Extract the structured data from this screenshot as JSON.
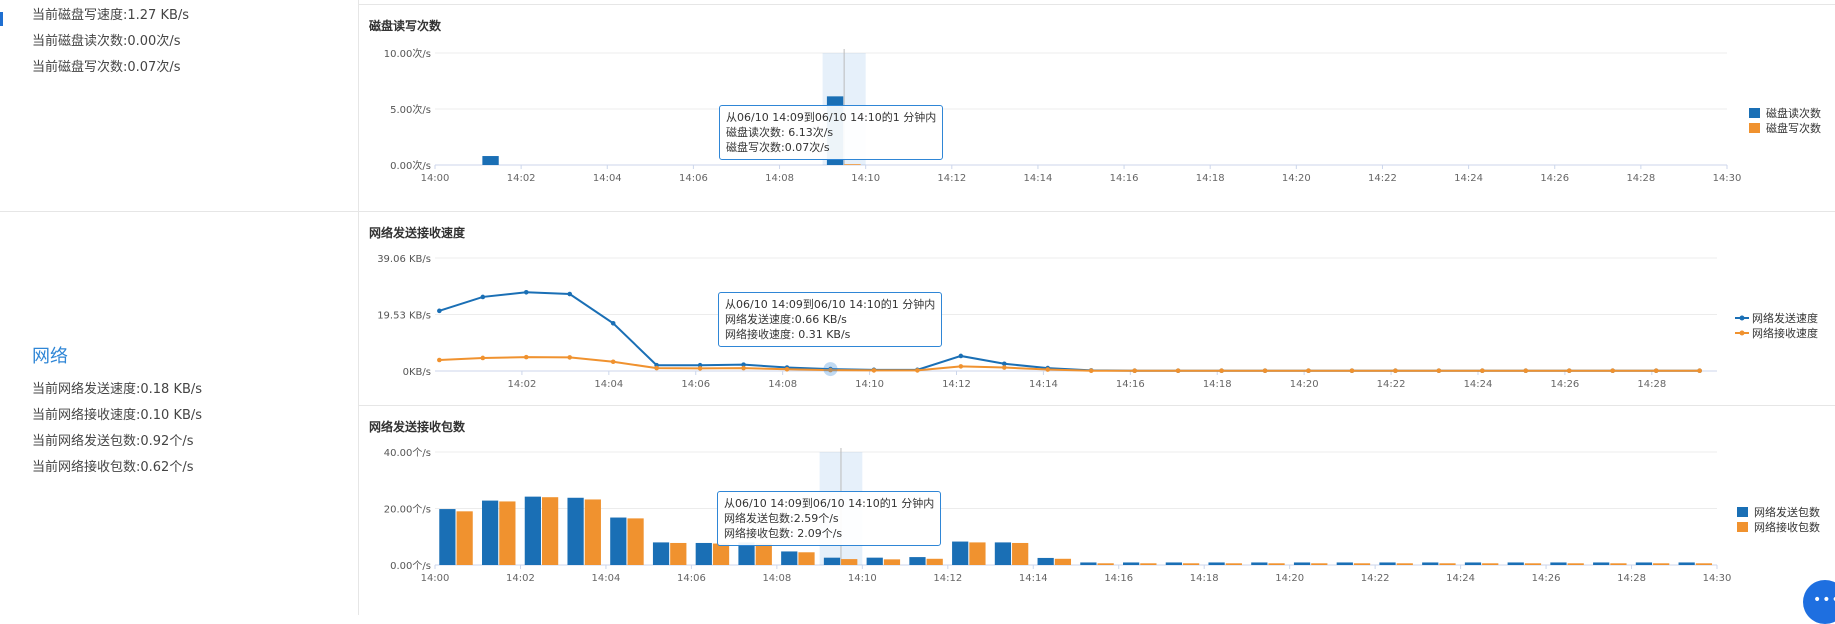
{
  "left": {
    "disk_stats": [
      "当前磁盘写速度:1.27 KB/s",
      "当前磁盘读次数:0.00次/s",
      "当前磁盘写次数:0.07次/s"
    ],
    "network_title": "网络",
    "network_stats": [
      "当前网络发送速度:0.18 KB/s",
      "当前网络接收速度:0.10 KB/s",
      "当前网络发送包数:0.92个/s",
      "当前网络接收包数:0.62个/s"
    ]
  },
  "chat_icon": "chat-bubble-icon",
  "chart_data": [
    {
      "type": "bar",
      "title": "磁盘读写次数",
      "y_ticks": [
        "10.00次/s",
        "5.00次/s",
        "0.00次/s"
      ],
      "ylim": [
        0,
        10
      ],
      "x_ticks": [
        "14:00",
        "14:02",
        "14:04",
        "14:06",
        "14:08",
        "14:10",
        "14:12",
        "14:14",
        "14:16",
        "14:18",
        "14:20",
        "14:22",
        "14:24",
        "14:26",
        "14:28",
        "14:30"
      ],
      "x_range": [
        0,
        30
      ],
      "legend_position": "right",
      "series": [
        {
          "name": "磁盘读次数",
          "color": "#1a6fb5",
          "points": [
            [
              1,
              0.8
            ],
            [
              9,
              6.13
            ]
          ]
        },
        {
          "name": "磁盘写次数",
          "color": "#f0922f",
          "points": [
            [
              9,
              0.07
            ]
          ]
        }
      ],
      "highlight_minute": 9,
      "tooltip": [
        "从06/10 14:09到06/10 14:10的1 分钟内",
        "磁盘读次数: 6.13次/s",
        "磁盘写次数:0.07次/s"
      ]
    },
    {
      "type": "line",
      "title": "网络发送接收速度",
      "y_ticks": [
        "39.06 KB/s",
        "19.53 KB/s",
        "0KB/s"
      ],
      "ylim": [
        0,
        39.06
      ],
      "x_ticks": [
        "14:02",
        "14:04",
        "14:06",
        "14:08",
        "14:10",
        "14:12",
        "14:14",
        "14:16",
        "14:18",
        "14:20",
        "14:22",
        "14:24",
        "14:26",
        "14:28"
      ],
      "x_range": [
        0,
        29.5
      ],
      "legend_position": "right",
      "series": [
        {
          "name": "网络发送速度",
          "color": "#1a6fb5",
          "values": [
            20.8,
            25.6,
            27.2,
            26.6,
            16.5,
            2.0,
            2.0,
            2.2,
            1.2,
            0.66,
            0.4,
            0.4,
            5.2,
            2.5,
            1.0,
            0.2,
            0.1,
            0.1,
            0.1,
            0.1,
            0.1,
            0.1,
            0.1,
            0.1,
            0.1,
            0.1,
            0.1,
            0.1,
            0.1,
            0.1
          ]
        },
        {
          "name": "网络接收速度",
          "color": "#f0922f",
          "values": [
            3.8,
            4.5,
            4.8,
            4.7,
            3.2,
            1.0,
            0.9,
            1.0,
            0.6,
            0.31,
            0.2,
            0.2,
            1.6,
            1.2,
            0.5,
            0.1,
            0.1,
            0.1,
            0.1,
            0.1,
            0.1,
            0.1,
            0.1,
            0.1,
            0.1,
            0.1,
            0.1,
            0.1,
            0.1,
            0.1
          ]
        }
      ],
      "highlight_minute": 9,
      "tooltip": [
        "从06/10 14:09到06/10 14:10的1 分钟内",
        "网络发送速度:0.66 KB/s",
        "网络接收速度: 0.31 KB/s"
      ]
    },
    {
      "type": "bar",
      "title": "网络发送接收包数",
      "y_ticks": [
        "40.00个/s",
        "20.00个/s",
        "0.00个/s"
      ],
      "ylim": [
        0,
        40
      ],
      "x_ticks": [
        "14:00",
        "14:02",
        "14:04",
        "14:06",
        "14:08",
        "14:10",
        "14:12",
        "14:14",
        "14:16",
        "14:18",
        "14:20",
        "14:22",
        "14:24",
        "14:26",
        "14:28",
        "14:30"
      ],
      "x_range": [
        0,
        30
      ],
      "legend_position": "right",
      "series": [
        {
          "name": "网络发送包数",
          "color": "#1a6fb5",
          "values": [
            19.8,
            22.8,
            24.2,
            23.8,
            16.8,
            8.0,
            7.8,
            8.0,
            4.8,
            2.59,
            2.6,
            2.8,
            8.3,
            8.0,
            2.5,
            0.9,
            0.9,
            0.9,
            0.9,
            0.9,
            0.9,
            0.9,
            0.9,
            0.9,
            0.9,
            0.9,
            0.9,
            0.9,
            0.9,
            0.9
          ]
        },
        {
          "name": "网络接收包数",
          "color": "#f0922f",
          "values": [
            19.0,
            22.5,
            24.0,
            23.2,
            16.5,
            7.8,
            7.6,
            7.6,
            4.5,
            2.09,
            2.0,
            2.2,
            8.0,
            7.8,
            2.2,
            0.6,
            0.6,
            0.6,
            0.6,
            0.6,
            0.6,
            0.6,
            0.6,
            0.6,
            0.6,
            0.6,
            0.6,
            0.6,
            0.6,
            0.6
          ]
        }
      ],
      "highlight_minute": 9,
      "tooltip": [
        "从06/10 14:09到06/10 14:10的1 分钟内",
        "网络发送包数:2.59个/s",
        "网络接收包数: 2.09个/s"
      ]
    }
  ]
}
